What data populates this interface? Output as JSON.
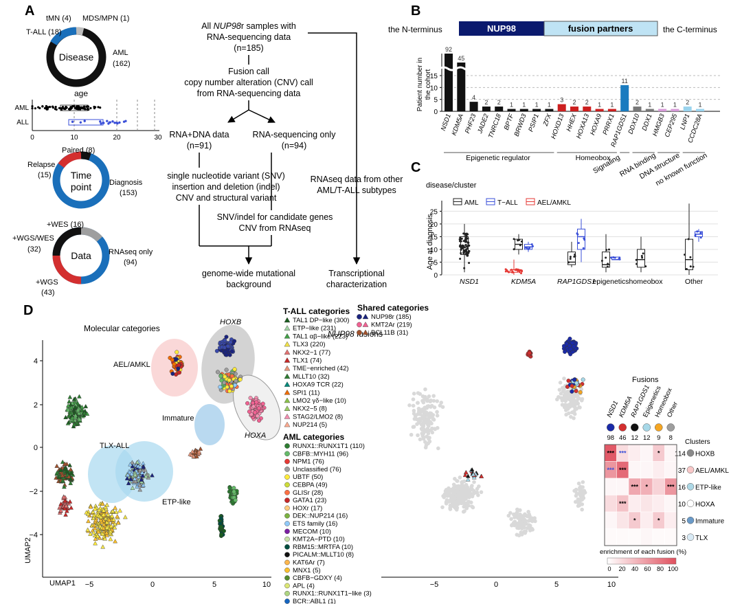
{
  "panels": {
    "a": "A",
    "b": "B",
    "c": "C",
    "d": "D"
  },
  "panel_a": {
    "disease": {
      "center": "Disease",
      "segments": [
        {
          "label": "AML",
          "value": "(162)",
          "color": "#111111"
        },
        {
          "label": "T-ALL (18)",
          "color": "#1a6fba"
        },
        {
          "label": "tMN (4)",
          "color": "#bdbdbd"
        },
        {
          "label": "MDS/MPN (1)",
          "color": "#555555"
        }
      ]
    },
    "age": {
      "title": "age",
      "rows": [
        "AML",
        "ALL"
      ],
      "ticks": [
        "0",
        "10",
        "20",
        "30"
      ]
    },
    "timepoint": {
      "center1": "Time",
      "center2": "point",
      "paired": "Paired (8)",
      "relapse1": "Relapse",
      "relapse2": "(15)",
      "diag1": "Diagnosis",
      "diag2": "(153)"
    },
    "data": {
      "center": "Data",
      "wes": "+WES (16)",
      "wgswes1": "+WGS/WES",
      "wgswes2": "(32)",
      "wgs1": "+WGS",
      "wgs2": "(43)",
      "rna1": "RNAseq only",
      "rna2": "(94)"
    },
    "flow": {
      "l1a": "All ",
      "l1b": "NUP98",
      "l1c": "r samples with",
      "l2": "RNA-sequencing data",
      "l3": "(n=185)",
      "l4": "Fusion call",
      "l5": "copy number alteration (CNV) call",
      "l6": "from RNA-sequencing data",
      "l7": "RNA+DNA data",
      "l8": "(n=91)",
      "l9": "RNA-sequencing only",
      "l10": "(n=94)",
      "l11": "single nucleotide variant (SNV)",
      "l12": "insertion and deletion (indel)",
      "l13": "CNV and structural variant",
      "l14": "SNV/indel for candidate genes",
      "l15": "CNV from RNAseq",
      "l16": "RNAseq data from other",
      "l17": "AML/T-ALL subtypes",
      "l18": "genome-wide mutational",
      "l19": "background",
      "l20": "Transcriptional",
      "l21": "characterization"
    }
  },
  "panel_b": {
    "nterm": "the N-terminus",
    "nup98": "NUP98",
    "partners": "fusion partners",
    "cterm": "the C-terminus",
    "ylabel1": "Patient number in",
    "ylabel2": "the cohort",
    "yticks": [
      "0",
      "5",
      "10",
      "15"
    ],
    "groups": [
      "Epigenetic regulator",
      "Homeobox",
      "Signaling",
      "RNA binding",
      "DNA structure",
      "no known function"
    ]
  },
  "panel_c": {
    "legend_title": "disease/cluster",
    "legend": [
      "AML",
      "T−ALL",
      "AEL/AMKL"
    ],
    "ylabel": "Age at diagnosis",
    "yticks": [
      "0",
      "5",
      "10",
      "15",
      "20",
      "25"
    ],
    "categories": [
      "NSD1",
      "KDM5A",
      "RAP1GDS1",
      "epigenetics",
      "homeobox",
      "Other"
    ]
  },
  "panel_d": {
    "left_title": "Molecular categories",
    "right_title_a": "NUP98",
    "right_title_b": " fusions",
    "cluster_labels": [
      "HOXB",
      "AEL/AMKL",
      "Immature",
      "TLX-ALL",
      "ETP-like",
      "HOXA"
    ],
    "xlabel": "UMAP1",
    "ylabel": "UMAP2",
    "xticks": [
      "−5",
      "0",
      "5",
      "10"
    ],
    "yticks": [
      "4",
      "2",
      "0",
      "−2",
      "−4"
    ],
    "tall_title": "T-ALL categories",
    "shared_title": "Shared categories",
    "aml_title": "AML categories",
    "tall": [
      {
        "label": "TAL1 DP−like (300)",
        "color": "#1b5e20"
      },
      {
        "label": "ETP−like (231)",
        "color": "#a5d6a7"
      },
      {
        "label": "TAL1 αβ−like (223)",
        "color": "#43a047"
      },
      {
        "label": "TLX3 (220)",
        "color": "#f2e34a"
      },
      {
        "label": "NKX2−1 (77)",
        "color": "#e57373"
      },
      {
        "label": "TLX1 (74)",
        "color": "#c62828"
      },
      {
        "label": "TME−enriched (42)",
        "color": "#e8967a"
      },
      {
        "label": "MLLT10 (32)",
        "color": "#2e7d32"
      },
      {
        "label": "HOXA9 TCR (22)",
        "color": "#00897b"
      },
      {
        "label": "SPI1 (11)",
        "color": "#ef6c00"
      },
      {
        "label": "LMO2 γδ−like (10)",
        "color": "#8bc34a"
      },
      {
        "label": "NKX2−5 (8)",
        "color": "#9ccc65"
      },
      {
        "label": "STAG2/LMO2 (8)",
        "color": "#f48fb1"
      },
      {
        "label": "NUP214 (5)",
        "color": "#ffab91"
      }
    ],
    "shared": [
      {
        "label": "NUP98r (185)",
        "color": "#1a237e"
      },
      {
        "label": "KMT2Ar (219)",
        "color": "#f06292"
      },
      {
        "label": "BCL11B (31)",
        "color": "#a0522d"
      }
    ],
    "aml": [
      {
        "label": "RUNX1::RUNX1T1 (110)",
        "color": "#2e7d32"
      },
      {
        "label": "CBFB::MYH11 (96)",
        "color": "#66bb6a"
      },
      {
        "label": "NPM1 (76)",
        "color": "#e53935"
      },
      {
        "label": "Unclassified (76)",
        "color": "#9e9e9e"
      },
      {
        "label": "UBTF (50)",
        "color": "#ffeb3b"
      },
      {
        "label": "CEBPA (49)",
        "color": "#cddc39"
      },
      {
        "label": "GLISr (28)",
        "color": "#ff7043"
      },
      {
        "label": "GATA1 (23)",
        "color": "#c62828"
      },
      {
        "label": "HOXr (17)",
        "color": "#ffcc80"
      },
      {
        "label": "DEK::NUP214 (16)",
        "color": "#7cb342"
      },
      {
        "label": "ETS family (16)",
        "color": "#90caf9"
      },
      {
        "label": "MECOM (10)",
        "color": "#7b1fa2"
      },
      {
        "label": "KMT2A−PTD (10)",
        "color": "#c5e1a5"
      },
      {
        "label": "RBM15::MRTFA (10)",
        "color": "#004d40"
      },
      {
        "label": "PICALM::MLLT10 (8)",
        "color": "#111111"
      },
      {
        "label": "KAT6Ar (7)",
        "color": "#ffb74d"
      },
      {
        "label": "MNX1 (5)",
        "color": "#fbc02d"
      },
      {
        "label": "CBFB−GDXY (4)",
        "color": "#558b2f"
      },
      {
        "label": "APL (4)",
        "color": "#dce775"
      },
      {
        "label": "RUNX1::RUNX1T1−like (3)",
        "color": "#aed581"
      },
      {
        "label": "BCR::ABL1 (1)",
        "color": "#1565c0"
      }
    ],
    "fusions_title": "Fusions",
    "fusion_cols": [
      "NSD1",
      "KDM5A",
      "RAP1GDS1",
      "Epigenetics",
      "Homeobox",
      "Other"
    ],
    "fusion_colors": [
      "#1a2aa8",
      "#d32f2f",
      "#111111",
      "#a7d8e8",
      "#f5a623",
      "#9e9e9e"
    ],
    "col_counts": [
      "98",
      "46",
      "12",
      "12",
      "9",
      "8"
    ],
    "clusters_title": "Clusters",
    "rows": [
      {
        "count": "114",
        "label": "HOXB",
        "color": "#8a8a8a"
      },
      {
        "count": "37",
        "label": "AEL/AMKL",
        "color": "#f8c8c8"
      },
      {
        "count": "16",
        "label": "ETP-like",
        "color": "#add8e6"
      },
      {
        "count": "10",
        "label": "HOXA",
        "color": "#ffffff"
      },
      {
        "count": "5",
        "label": "Immature",
        "color": "#6a9ac8"
      },
      {
        "count": "3",
        "label": "TLX",
        "color": "#d8eaf5"
      }
    ],
    "stars": [
      [
        "***",
        "***",
        "",
        "",
        "*",
        ""
      ],
      [
        "***",
        "***",
        "",
        "",
        "",
        ""
      ],
      [
        "",
        "",
        "***",
        "*",
        "",
        "***"
      ],
      [
        "",
        "***",
        "",
        "",
        "",
        ""
      ],
      [
        "",
        "",
        "*",
        "",
        "*",
        ""
      ],
      [
        "",
        "",
        "",
        "",
        "",
        ""
      ]
    ],
    "legend_label": "enrichment of each fusion (%)",
    "legend_ticks": [
      "0",
      "20",
      "40",
      "60",
      "80",
      "100"
    ]
  },
  "chart_data": [
    {
      "type": "bar",
      "title": "NUP98 fusion partners",
      "ylabel": "Patient number in the cohort",
      "categories": [
        "NSD1",
        "KDM5A",
        "PHF23",
        "JADE2",
        "TNRC18",
        "BPTF",
        "BRWD3",
        "PSIP1",
        "ZFX",
        "HOXD13",
        "HHEX",
        "HOXA13",
        "HOXA9",
        "PRRX1",
        "RAP1GDS1",
        "DDX10",
        "DDX1",
        "HMGB3",
        "CEP295",
        "LNP1",
        "CCDC28A"
      ],
      "values": [
        92,
        45,
        4,
        2,
        2,
        1,
        1,
        1,
        1,
        3,
        2,
        2,
        1,
        1,
        11,
        2,
        1,
        1,
        1,
        2,
        1
      ],
      "groups": [
        0,
        0,
        0,
        0,
        0,
        0,
        0,
        0,
        0,
        1,
        1,
        1,
        1,
        1,
        2,
        3,
        3,
        4,
        4,
        5,
        5
      ],
      "colors": [
        "#111",
        "#111",
        "#111",
        "#111",
        "#111",
        "#111",
        "#111",
        "#111",
        "#111",
        "#cc1f1f",
        "#cc1f1f",
        "#cc1f1f",
        "#cc1f1f",
        "#cc1f1f",
        "#1a7bbf",
        "#777",
        "#777",
        "#d69ad8",
        "#d69ad8",
        "#9ad4ee",
        "#9ad4ee"
      ],
      "ylim": [
        0,
        15
      ],
      "break": true
    },
    {
      "type": "box",
      "title": "Age at diagnosis",
      "ylabel": "Age at diagnosis",
      "ylim": [
        0,
        28
      ],
      "series": [
        {
          "name": "AML",
          "color": "#222",
          "boxes": [
            {
              "cat": 0,
              "q1": 8,
              "med": 11,
              "q3": 15,
              "lo": 1,
              "hi": 20
            },
            {
              "cat": 1,
              "q1": 10,
              "med": 12,
              "q3": 14,
              "lo": 8,
              "hi": 16
            },
            {
              "cat": 2,
              "q1": 4,
              "med": 5,
              "q3": 9,
              "lo": 3,
              "hi": 13
            },
            {
              "cat": 3,
              "q1": 3,
              "med": 4,
              "q3": 9,
              "lo": 1,
              "hi": 16
            },
            {
              "cat": 4,
              "q1": 3,
              "med": 6,
              "q3": 10,
              "lo": 1,
              "hi": 15
            },
            {
              "cat": 5,
              "q1": 2,
              "med": 6,
              "q3": 14,
              "lo": 0,
              "hi": 28
            }
          ]
        },
        {
          "name": "T−ALL",
          "color": "#3a4fd8",
          "boxes": [
            {
              "cat": 1,
              "q1": 10,
              "med": 11,
              "q3": 12,
              "lo": 9,
              "hi": 13
            },
            {
              "cat": 2,
              "q1": 10,
              "med": 15,
              "q3": 18,
              "lo": 5,
              "hi": 22
            },
            {
              "cat": 3,
              "q1": 6,
              "med": 6,
              "q3": 7,
              "lo": 6,
              "hi": 7
            },
            {
              "cat": 5,
              "q1": 15,
              "med": 16,
              "q3": 17,
              "lo": 13,
              "hi": 18
            }
          ]
        },
        {
          "name": "AEL/AMKL",
          "color": "#e53935",
          "boxes": [
            {
              "cat": 1,
              "q1": 1,
              "med": 2,
              "q3": 2,
              "lo": 0,
              "hi": 6
            }
          ]
        }
      ]
    }
  ]
}
